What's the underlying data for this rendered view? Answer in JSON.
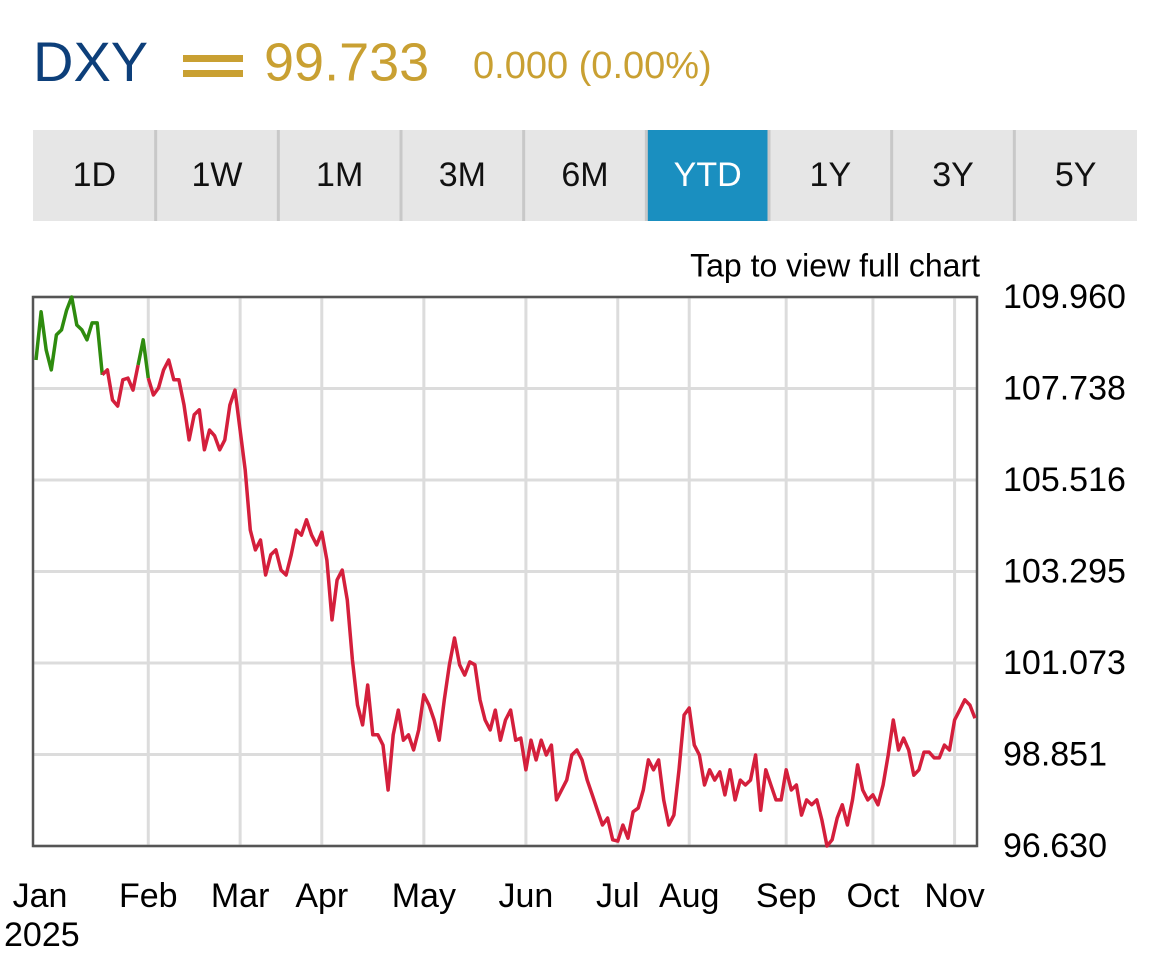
{
  "header": {
    "symbol": "DXY",
    "price": "99.733",
    "change": "0.000 (0.00%)"
  },
  "tabs": [
    "1D",
    "1W",
    "1M",
    "3M",
    "6M",
    "YTD",
    "1Y",
    "3Y",
    "5Y"
  ],
  "active_tab": "YTD",
  "hint": "Tap to view full chart",
  "chart_data": {
    "type": "line",
    "categories": [
      "Jan",
      null,
      null,
      null,
      null,
      null,
      null,
      null,
      null,
      null,
      null,
      null,
      null,
      null,
      null,
      null,
      null,
      null,
      null,
      null,
      null,
      null,
      "Feb",
      null,
      null,
      null,
      null,
      null,
      null,
      null,
      null,
      null,
      null,
      null,
      null,
      null,
      null,
      null,
      null,
      null,
      "Mar",
      null,
      null,
      null,
      null,
      null,
      null,
      null,
      null,
      null,
      null,
      null,
      null,
      null,
      null,
      null,
      "Apr",
      null,
      null,
      null,
      null,
      null,
      null,
      null,
      null,
      null,
      null,
      null,
      null,
      null,
      null,
      null,
      null,
      null,
      null,
      null,
      "May",
      null,
      null,
      null,
      null,
      null,
      null,
      null,
      null,
      null,
      null,
      null,
      null,
      null,
      null,
      null,
      null,
      null,
      null,
      null,
      "Jun",
      null,
      null,
      null,
      null,
      null,
      null,
      null,
      null,
      null,
      null,
      null,
      null,
      null,
      null,
      null,
      null,
      null,
      "Jul",
      null,
      null,
      null,
      null,
      null,
      null,
      null,
      null,
      null,
      null,
      null,
      null,
      null,
      "Aug",
      null,
      null,
      null,
      null,
      null,
      null,
      null,
      null,
      null,
      null,
      null,
      null,
      null,
      null,
      null,
      null,
      null,
      null,
      "Sep",
      null,
      null,
      null,
      null,
      null,
      null,
      null,
      null,
      null,
      null,
      null,
      null,
      null,
      null,
      null,
      null,
      "Oct",
      null,
      null,
      null,
      null,
      null,
      null,
      null,
      null,
      null,
      null,
      null,
      null,
      null,
      null,
      null,
      "Nov",
      null,
      null,
      null,
      null
    ],
    "year_label": "2025",
    "values": [
      108.43,
      109.6,
      108.67,
      108.19,
      109.04,
      109.16,
      109.64,
      109.96,
      109.28,
      109.16,
      108.92,
      109.33,
      109.33,
      108.07,
      108.19,
      107.46,
      107.31,
      107.95,
      107.99,
      107.7,
      108.31,
      108.92,
      107.99,
      107.58,
      107.75,
      108.19,
      108.43,
      107.95,
      107.95,
      107.34,
      106.49,
      107.1,
      107.22,
      106.25,
      106.73,
      106.59,
      106.25,
      106.49,
      107.34,
      107.7,
      106.73,
      105.76,
      104.3,
      103.82,
      104.06,
      103.21,
      103.7,
      103.82,
      103.33,
      103.21,
      103.7,
      104.3,
      104.18,
      104.55,
      104.18,
      103.94,
      104.25,
      103.57,
      102.12,
      103.09,
      103.33,
      102.6,
      101.15,
      100.05,
      99.57,
      100.54,
      99.33,
      99.33,
      99.08,
      97.99,
      99.33,
      99.93,
      99.2,
      99.33,
      98.96,
      99.45,
      100.3,
      100.05,
      99.69,
      99.2,
      100.18,
      101.03,
      101.68,
      101.03,
      100.78,
      101.1,
      101.03,
      100.18,
      99.69,
      99.45,
      99.93,
      99.2,
      99.69,
      99.93,
      99.2,
      99.25,
      98.48,
      99.2,
      98.72,
      99.2,
      98.84,
      99.08,
      97.75,
      97.99,
      98.23,
      98.84,
      98.96,
      98.72,
      98.23,
      97.87,
      97.5,
      97.14,
      97.31,
      96.78,
      96.75,
      97.14,
      96.82,
      97.46,
      97.55,
      97.99,
      98.72,
      98.48,
      98.72,
      97.75,
      97.14,
      97.38,
      98.48,
      99.81,
      99.98,
      99.08,
      98.84,
      98.11,
      98.48,
      98.23,
      98.43,
      97.87,
      98.48,
      97.75,
      98.23,
      98.11,
      98.23,
      98.84,
      97.5,
      98.48,
      98.11,
      97.75,
      97.75,
      98.48,
      97.99,
      98.11,
      97.38,
      97.75,
      97.63,
      97.75,
      97.26,
      96.63,
      96.78,
      97.31,
      97.63,
      97.14,
      97.75,
      98.6,
      97.99,
      97.75,
      97.87,
      97.63,
      98.11,
      98.84,
      99.69,
      98.96,
      99.25,
      98.96,
      98.35,
      98.48,
      98.91,
      98.91,
      98.77,
      98.77,
      99.08,
      98.96,
      99.69,
      99.93,
      100.18,
      100.05,
      99.73
    ],
    "color_above_open": "#2e8b0e",
    "color_below_open": "#d41f3c",
    "ylim": [
      96.63,
      109.96
    ],
    "yticks": [
      {
        "value": 109.96,
        "label": "109.960"
      },
      107.738,
      105.516,
      103.295,
      101.073,
      98.851,
      {
        "value": 96.63,
        "label": "96.630"
      }
    ],
    "grid": true
  }
}
